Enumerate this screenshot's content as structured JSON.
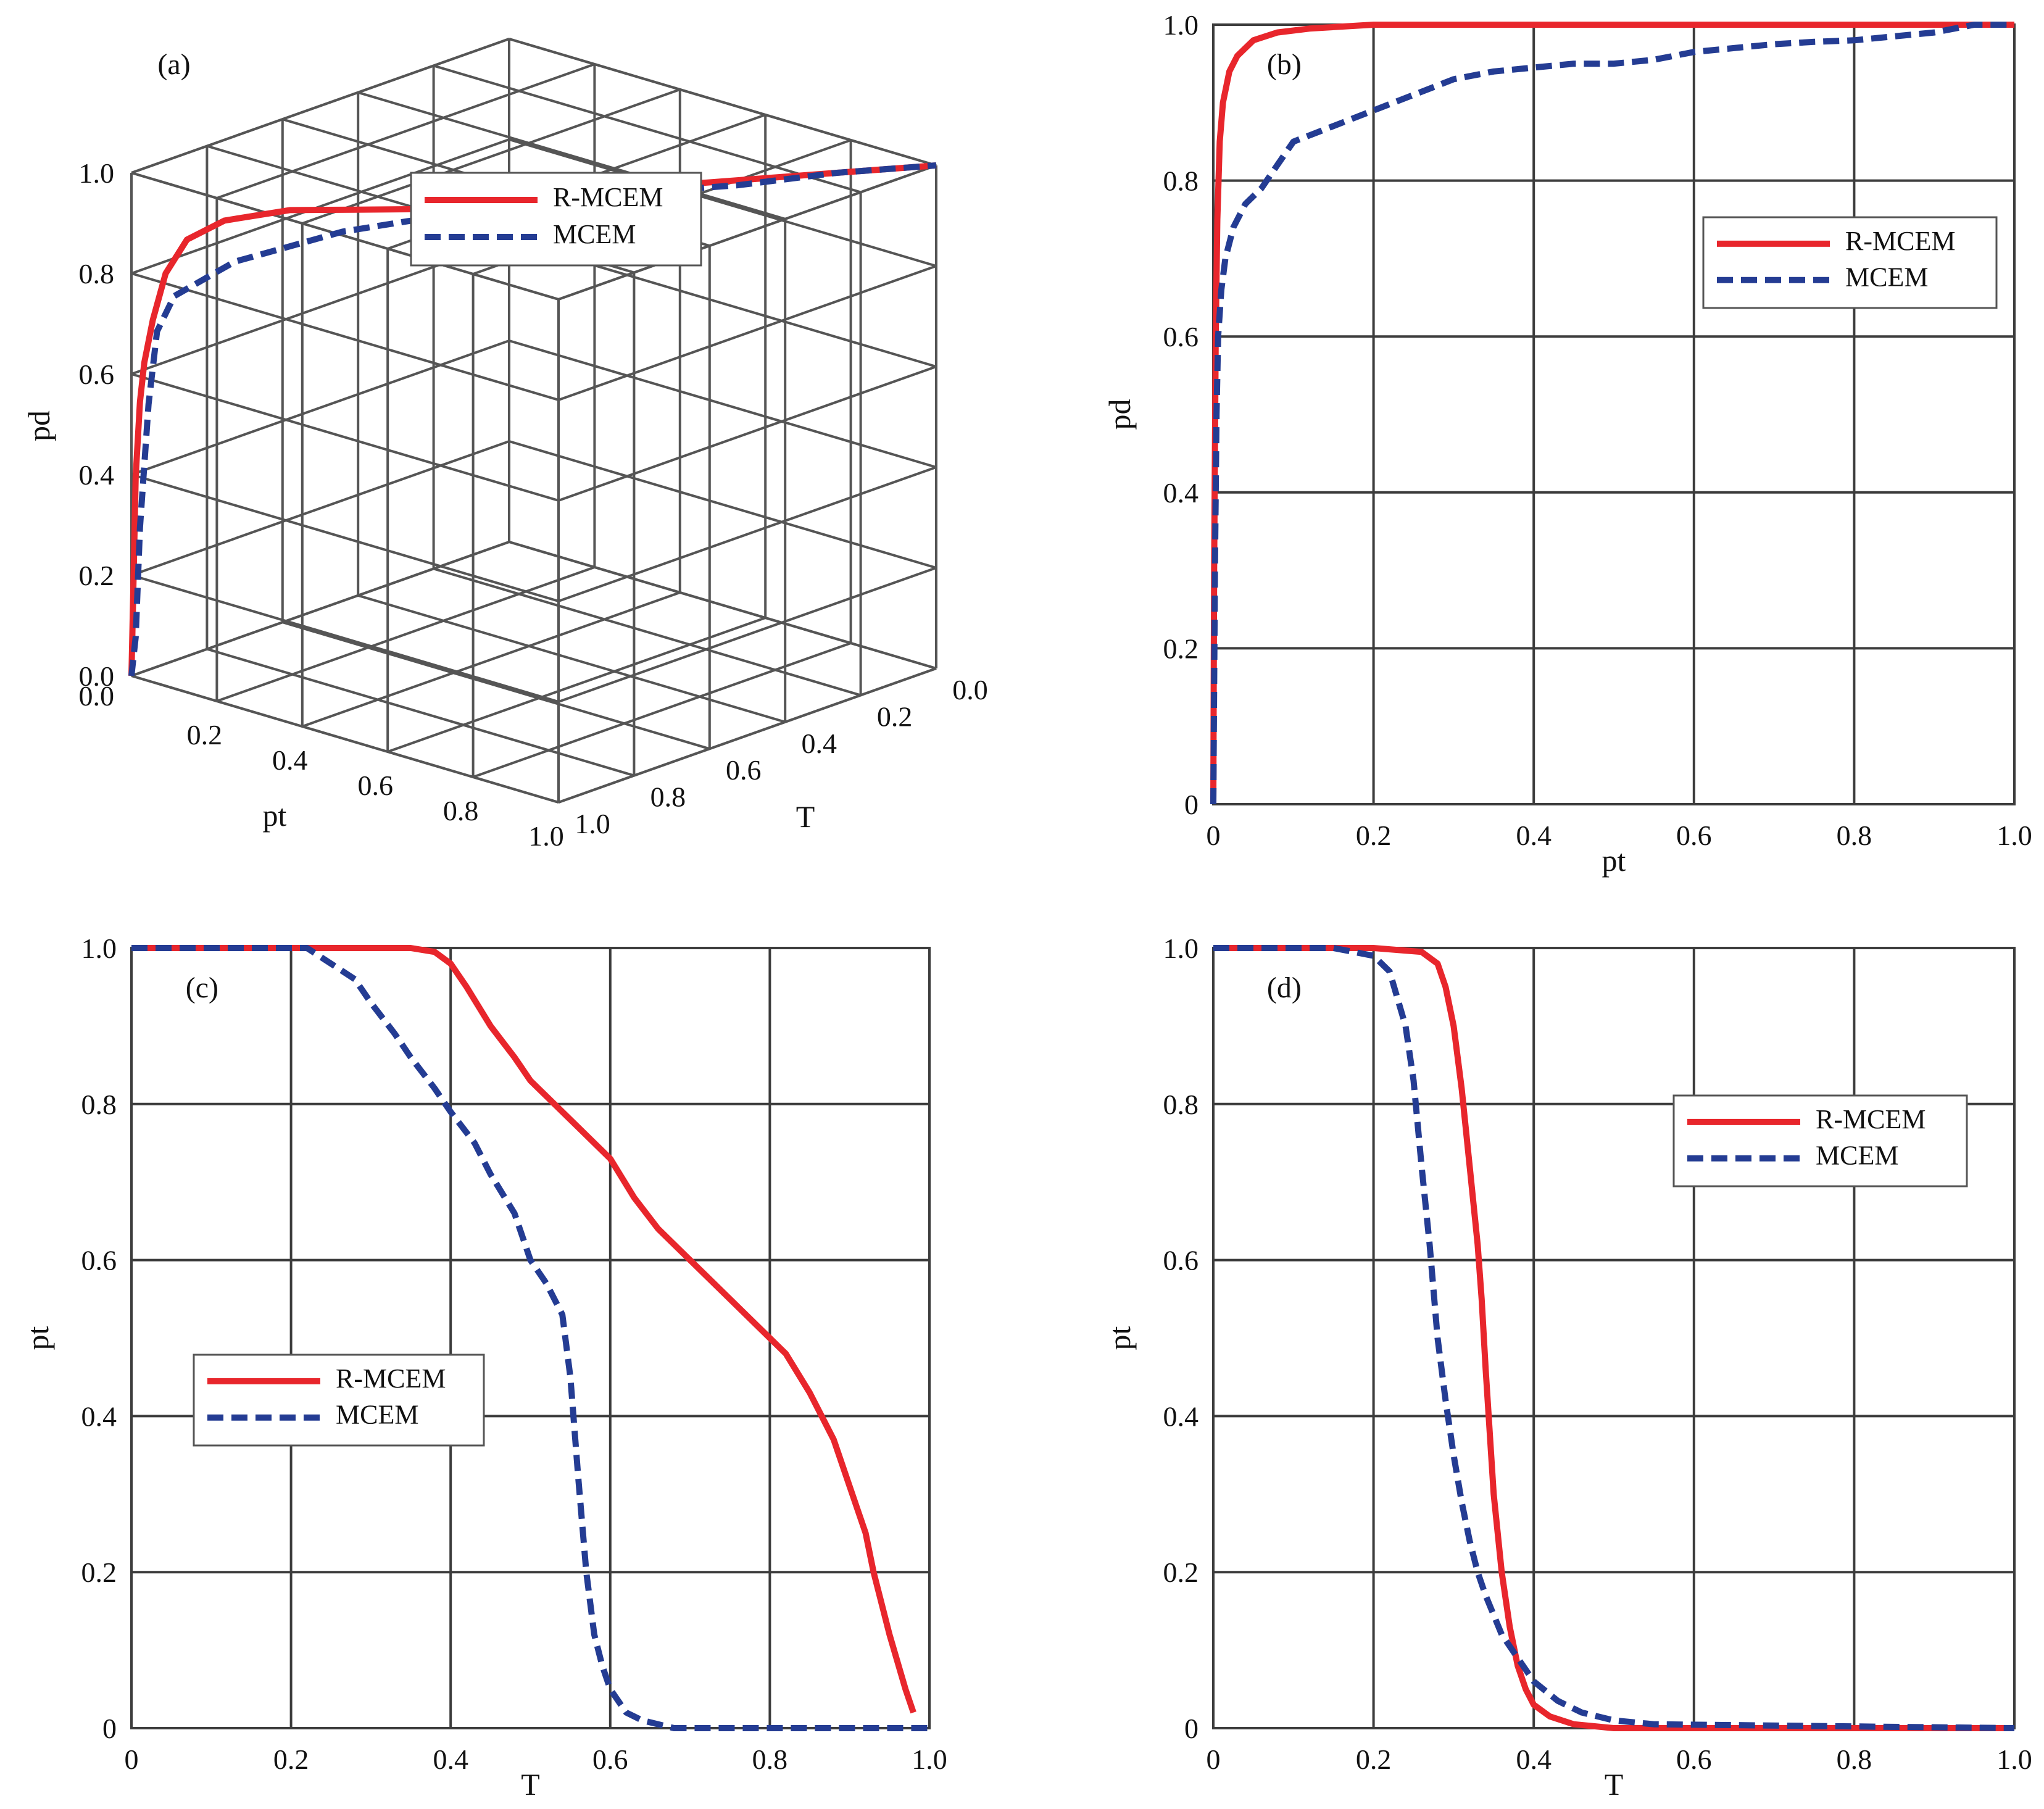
{
  "colors": {
    "r_mcem": "#e8262c",
    "mcem": "#243c93",
    "grid": "#3c3c3c"
  },
  "chart_data": [
    {
      "panel": "(a)",
      "type": "line",
      "projection": "3d",
      "xlabel": "pt",
      "ylabel": "pd",
      "zlabel": "T",
      "ticks_pt": [
        "0.0",
        "0.2",
        "0.4",
        "0.6",
        "0.8",
        "1.0"
      ],
      "ticks_pd": [
        "0.0",
        "0.2",
        "0.4",
        "0.6",
        "0.8",
        "1.0"
      ],
      "ticks_T": [
        "0.0",
        "0.2",
        "0.4",
        "0.6",
        "0.8",
        "1.0"
      ],
      "legend": "top-center",
      "grid": true,
      "series": [
        {
          "name": "R-MCEM",
          "style": "solid",
          "points": [
            [
              0,
              0,
              1.0
            ],
            [
              0.005,
              0.2,
              1.0
            ],
            [
              0.01,
              0.4,
              1.0
            ],
            [
              0.02,
              0.55,
              1.0
            ],
            [
              0.03,
              0.63,
              1.0
            ],
            [
              0.05,
              0.72,
              1.0
            ],
            [
              0.08,
              0.82,
              1.0
            ],
            [
              0.13,
              0.9,
              1.0
            ],
            [
              0.2,
              0.95,
              0.98
            ],
            [
              0.3,
              0.98,
              0.92
            ],
            [
              0.4,
              0.99,
              0.86
            ],
            [
              0.5,
              0.995,
              0.78
            ],
            [
              0.6,
              1.0,
              0.6
            ],
            [
              0.7,
              1.0,
              0.45
            ],
            [
              0.8,
              1.0,
              0.3
            ],
            [
              0.9,
              1.0,
              0.15
            ],
            [
              1.0,
              1.0,
              0.0
            ]
          ]
        },
        {
          "name": "MCEM",
          "style": "dashed",
          "points": [
            [
              0,
              0,
              1.0
            ],
            [
              0.01,
              0.08,
              1.0
            ],
            [
              0.02,
              0.3,
              1.0
            ],
            [
              0.04,
              0.55,
              1.0
            ],
            [
              0.06,
              0.7,
              1.0
            ],
            [
              0.1,
              0.78,
              1.0
            ],
            [
              0.18,
              0.85,
              0.93
            ],
            [
              0.3,
              0.9,
              0.78
            ],
            [
              0.4,
              0.93,
              0.72
            ],
            [
              0.5,
              0.95,
              0.62
            ],
            [
              0.6,
              0.96,
              0.5
            ],
            [
              0.7,
              0.98,
              0.4
            ],
            [
              0.8,
              0.99,
              0.3
            ],
            [
              0.9,
              1.0,
              0.15
            ],
            [
              1.0,
              1.0,
              0.0
            ]
          ]
        }
      ]
    },
    {
      "panel": "(b)",
      "type": "line",
      "xlabel": "pt",
      "ylabel": "pd",
      "xlim": [
        0,
        1
      ],
      "ylim": [
        0,
        1
      ],
      "xticks": [
        "0",
        "0.2",
        "0.4",
        "0.6",
        "0.8",
        "1.0"
      ],
      "yticks": [
        "0",
        "0.2",
        "0.4",
        "0.6",
        "0.8",
        "1.0"
      ],
      "legend": "right",
      "grid": true,
      "series": [
        {
          "name": "R-MCEM",
          "style": "solid",
          "x": [
            0,
            0.001,
            0.003,
            0.005,
            0.008,
            0.012,
            0.02,
            0.03,
            0.05,
            0.08,
            0.12,
            0.2,
            0.4,
            0.6,
            0.8,
            1.0
          ],
          "y": [
            0,
            0.3,
            0.6,
            0.75,
            0.85,
            0.9,
            0.94,
            0.96,
            0.98,
            0.99,
            0.995,
            1.0,
            1.0,
            1.0,
            1.0,
            1.0
          ]
        },
        {
          "name": "MCEM",
          "style": "dashed",
          "x": [
            0,
            0.002,
            0.004,
            0.006,
            0.01,
            0.015,
            0.025,
            0.04,
            0.06,
            0.08,
            0.1,
            0.15,
            0.2,
            0.25,
            0.3,
            0.35,
            0.4,
            0.45,
            0.5,
            0.55,
            0.6,
            0.65,
            0.7,
            0.75,
            0.8,
            0.85,
            0.9,
            0.95,
            1.0
          ],
          "y": [
            0,
            0.3,
            0.5,
            0.6,
            0.66,
            0.7,
            0.74,
            0.77,
            0.79,
            0.82,
            0.85,
            0.87,
            0.89,
            0.91,
            0.93,
            0.94,
            0.945,
            0.95,
            0.95,
            0.955,
            0.965,
            0.97,
            0.975,
            0.978,
            0.98,
            0.985,
            0.99,
            1.0,
            1.0
          ]
        }
      ]
    },
    {
      "panel": "(c)",
      "type": "line",
      "xlabel": "T",
      "ylabel": "pt",
      "xlim": [
        0,
        1
      ],
      "ylim": [
        0,
        1
      ],
      "xticks": [
        "0",
        "0.2",
        "0.4",
        "0.6",
        "0.8",
        "1.0"
      ],
      "yticks": [
        "0",
        "0.2",
        "0.4",
        "0.6",
        "0.8",
        "1.0"
      ],
      "legend": "left-center",
      "grid": true,
      "series": [
        {
          "name": "R-MCEM",
          "style": "solid",
          "x": [
            0,
            0.2,
            0.3,
            0.35,
            0.38,
            0.4,
            0.42,
            0.45,
            0.48,
            0.5,
            0.53,
            0.56,
            0.6,
            0.63,
            0.66,
            0.7,
            0.75,
            0.78,
            0.8,
            0.82,
            0.85,
            0.88,
            0.9,
            0.92,
            0.93,
            0.95,
            0.97,
            0.98
          ],
          "y": [
            1,
            1,
            1,
            1,
            0.995,
            0.98,
            0.95,
            0.9,
            0.86,
            0.83,
            0.8,
            0.77,
            0.73,
            0.68,
            0.64,
            0.6,
            0.55,
            0.52,
            0.5,
            0.48,
            0.43,
            0.37,
            0.31,
            0.25,
            0.2,
            0.12,
            0.05,
            0.02
          ]
        },
        {
          "name": "MCEM",
          "style": "dashed",
          "x": [
            0,
            0.2,
            0.22,
            0.25,
            0.28,
            0.3,
            0.33,
            0.35,
            0.38,
            0.4,
            0.43,
            0.45,
            0.48,
            0.5,
            0.52,
            0.54,
            0.55,
            0.56,
            0.57,
            0.58,
            0.59,
            0.6,
            0.62,
            0.64,
            0.66,
            0.68,
            0.7,
            1.0
          ],
          "y": [
            1,
            1,
            1,
            0.98,
            0.96,
            0.93,
            0.89,
            0.86,
            0.82,
            0.79,
            0.75,
            0.71,
            0.66,
            0.6,
            0.57,
            0.53,
            0.45,
            0.32,
            0.2,
            0.12,
            0.08,
            0.05,
            0.02,
            0.01,
            0.005,
            0,
            0,
            0
          ]
        }
      ]
    },
    {
      "panel": "(d)",
      "type": "line",
      "xlabel": "T",
      "ylabel": "pt",
      "xlim": [
        0,
        1
      ],
      "ylim": [
        0,
        1
      ],
      "xticks": [
        "0",
        "0.2",
        "0.4",
        "0.6",
        "0.8",
        "1.0"
      ],
      "yticks": [
        "0",
        "0.2",
        "0.4",
        "0.6",
        "0.8",
        "1.0"
      ],
      "legend": "right",
      "grid": true,
      "series": [
        {
          "name": "R-MCEM",
          "style": "solid",
          "x": [
            0,
            0.2,
            0.26,
            0.28,
            0.29,
            0.3,
            0.31,
            0.32,
            0.33,
            0.335,
            0.34,
            0.35,
            0.36,
            0.37,
            0.38,
            0.39,
            0.4,
            0.42,
            0.45,
            0.5,
            0.6,
            1.0
          ],
          "y": [
            1,
            1,
            0.995,
            0.98,
            0.95,
            0.9,
            0.82,
            0.72,
            0.62,
            0.55,
            0.46,
            0.3,
            0.2,
            0.13,
            0.08,
            0.05,
            0.03,
            0.015,
            0.005,
            0,
            0,
            0
          ]
        },
        {
          "name": "MCEM",
          "style": "dashed",
          "x": [
            0,
            0.15,
            0.2,
            0.22,
            0.24,
            0.25,
            0.26,
            0.27,
            0.28,
            0.29,
            0.3,
            0.31,
            0.32,
            0.33,
            0.34,
            0.36,
            0.38,
            0.4,
            0.43,
            0.46,
            0.5,
            0.55,
            1.0
          ],
          "y": [
            1,
            1,
            0.99,
            0.97,
            0.9,
            0.83,
            0.72,
            0.62,
            0.5,
            0.42,
            0.35,
            0.29,
            0.24,
            0.2,
            0.17,
            0.12,
            0.09,
            0.06,
            0.035,
            0.02,
            0.01,
            0.005,
            0
          ]
        }
      ]
    }
  ]
}
